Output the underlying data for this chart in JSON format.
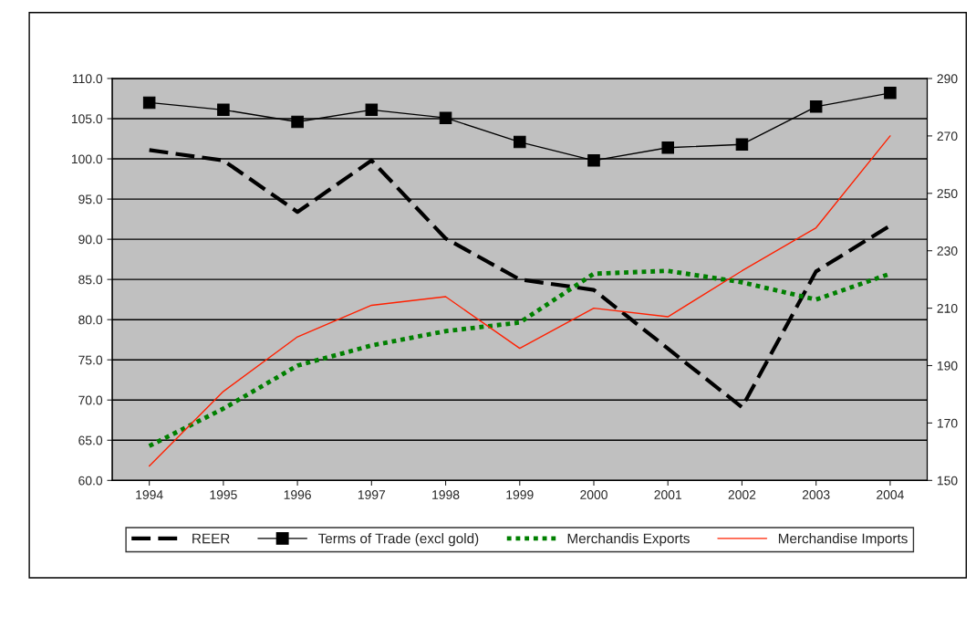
{
  "chart_data": {
    "type": "line",
    "categories": [
      "1994",
      "1995",
      "1996",
      "1997",
      "1998",
      "1999",
      "2000",
      "2001",
      "2002",
      "2003",
      "2004"
    ],
    "series": [
      {
        "name": "REER",
        "color": "#000000",
        "line_style": "dashed",
        "marker": "none",
        "values": [
          101.1,
          99.8,
          93.4,
          99.8,
          90.1,
          85.0,
          83.7,
          76.4,
          69.1,
          86.0,
          91.7
        ]
      },
      {
        "name": "Terms of Trade (excl gold)",
        "color": "#000000",
        "line_style": "solid",
        "marker": "square",
        "values": [
          107.0,
          106.1,
          104.6,
          106.1,
          105.1,
          102.1,
          99.8,
          101.4,
          101.8,
          106.5,
          108.2
        ]
      },
      {
        "name": "Merchandis Exports",
        "color": "#008000",
        "line_style": "dotted",
        "marker": "none",
        "axis": "y2",
        "values": [
          162,
          175,
          190,
          197,
          202,
          205,
          222,
          223,
          219,
          213,
          222
        ]
      },
      {
        "name": "Merchandise Imports",
        "color": "#ff2000",
        "line_style": "solid",
        "marker": "none",
        "axis": "y2",
        "values": [
          155,
          181,
          200,
          211,
          214,
          196,
          210,
          207,
          223,
          238,
          270
        ]
      }
    ],
    "ylim": [
      60,
      110
    ],
    "yticks": [
      {
        "value": 60,
        "label": "60.0"
      },
      {
        "value": 65,
        "label": "65.0"
      },
      {
        "value": 70,
        "label": "70.0"
      },
      {
        "value": 75,
        "label": "75.0"
      },
      {
        "value": 80,
        "label": "80.0"
      },
      {
        "value": 85,
        "label": "85.0"
      },
      {
        "value": 90,
        "label": "90.0"
      },
      {
        "value": 95,
        "label": "95.0"
      },
      {
        "value": 100,
        "label": "100.0"
      },
      {
        "value": 105,
        "label": "105.0"
      },
      {
        "value": 110,
        "label": "110.0"
      }
    ],
    "y2lim": [
      150,
      290
    ],
    "y2ticks": [
      150,
      170,
      190,
      210,
      230,
      250,
      270,
      290
    ],
    "grid": "y",
    "legend": "bottom"
  }
}
